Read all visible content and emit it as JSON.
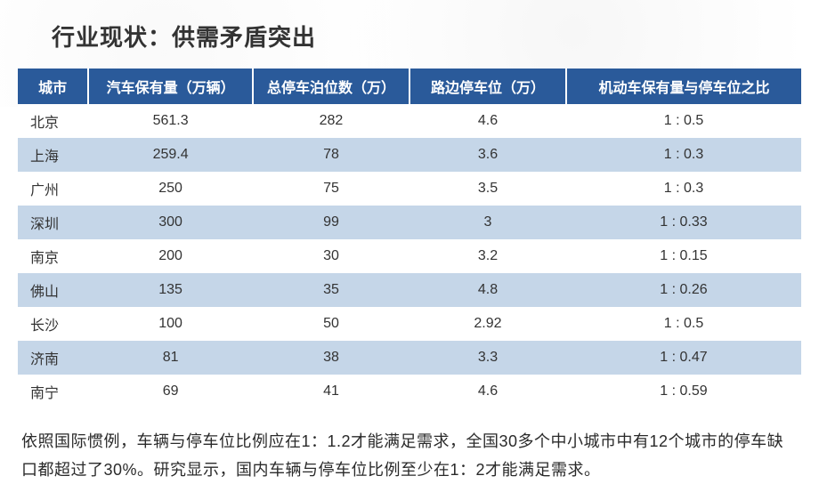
{
  "title": "行业现状：供需矛盾突出",
  "table": {
    "header_bg": "#2a5a9a",
    "header_color": "#ffffff",
    "row_odd_bg": "#ffffff",
    "row_even_bg": "#c5d6e8",
    "columns": [
      {
        "label": "城市",
        "key": "city"
      },
      {
        "label": "汽车保有量（万辆）",
        "key": "a"
      },
      {
        "label": "总停车泊位数（万）",
        "key": "b"
      },
      {
        "label": "路边停车位（万）",
        "key": "c"
      },
      {
        "label": "机动车保有量与停车位之比",
        "key": "d"
      }
    ],
    "rows": [
      {
        "city": "北京",
        "a": "561.3",
        "b": "282",
        "c": "4.6",
        "d": "1 : 0.5"
      },
      {
        "city": "上海",
        "a": "259.4",
        "b": "78",
        "c": "3.6",
        "d": "1 : 0.3"
      },
      {
        "city": "广州",
        "a": "250",
        "b": "75",
        "c": "3.5",
        "d": "1 : 0.3"
      },
      {
        "city": "深圳",
        "a": "300",
        "b": "99",
        "c": "3",
        "d": "1 : 0.33"
      },
      {
        "city": "南京",
        "a": "200",
        "b": "30",
        "c": "3.2",
        "d": "1 : 0.15"
      },
      {
        "city": "佛山",
        "a": "135",
        "b": "35",
        "c": "4.8",
        "d": "1 : 0.26"
      },
      {
        "city": "长沙",
        "a": "100",
        "b": "50",
        "c": "2.92",
        "d": "1 : 0.5"
      },
      {
        "city": "济南",
        "a": "81",
        "b": "38",
        "c": "3.3",
        "d": "1 : 0.47"
      },
      {
        "city": "南宁",
        "a": "69",
        "b": "41",
        "c": "4.6",
        "d": "1 : 0.59"
      }
    ]
  },
  "caption": "依照国际惯例，车辆与停车位比例应在1：1.2才能满足需求，全国30多个中小城市中有12个城市的停车缺口都超过了30%。研究显示，国内车辆与停车位比例至少在1：2才能满足需求。"
}
